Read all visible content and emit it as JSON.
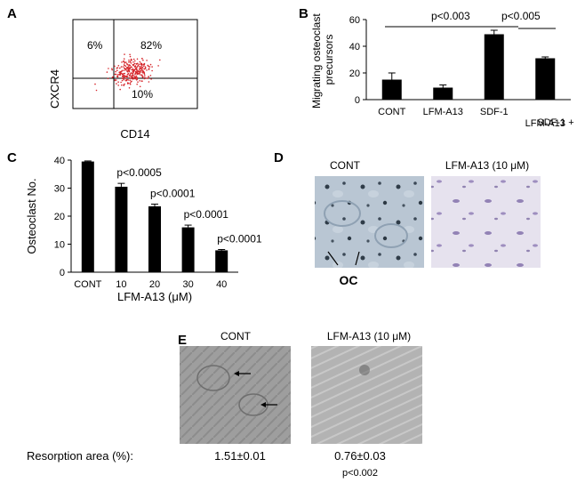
{
  "panels": {
    "A": {
      "letter": "A",
      "ylabel": "CXCR4",
      "xlabel": "CD14",
      "quadrant_ul": "6%",
      "quadrant_ur": "82%",
      "quadrant_lr": "10%"
    },
    "B": {
      "letter": "B",
      "p_value_1": "p<0.003",
      "p_value_2": "p<0.005",
      "cat_labels_multiline": [
        "",
        "",
        "",
        "SDF-1 +"
      ]
    },
    "C": {
      "letter": "C",
      "p_values": [
        "p<0.0005",
        "p<0.0001",
        "p<0.0001",
        "p<0.0001"
      ]
    },
    "D": {
      "letter": "D",
      "title_left": "CONT",
      "title_right": "LFM-A13 (10 μM)",
      "oc_label": "OC"
    },
    "E": {
      "letter": "E",
      "title_left": "CONT",
      "title_right": "LFM-A13 (10 μM)",
      "resorption_label": "Resorption area (%):",
      "value_cont": "1.51±0.01",
      "value_lfm": "0.76±0.03",
      "p_value": "p<0.002"
    }
  },
  "chart_data": [
    {
      "id": "B",
      "type": "bar",
      "categories": [
        "CONT",
        "LFM-A13",
        "SDF-1",
        "LFM-A13"
      ],
      "values": [
        15,
        9,
        49,
        31
      ],
      "errors": [
        5,
        2,
        3,
        1
      ],
      "ylabel": "Migrating osteoclast precursors",
      "ylabel_lines": [
        "Migrating osteoclast",
        "precursors"
      ],
      "ylim": [
        0,
        60
      ],
      "yticks": [
        0,
        20,
        40,
        60
      ],
      "color": "#000000"
    },
    {
      "id": "C",
      "type": "bar",
      "categories": [
        "CONT",
        "10",
        "20",
        "30",
        "40"
      ],
      "values": [
        39.5,
        30.5,
        23.5,
        16,
        7.8
      ],
      "errors": [
        0.2,
        1.2,
        0.8,
        0.8,
        0.3
      ],
      "xlabel": "LFM-A13 (μM)",
      "ylabel": "Osteoclast No.",
      "ylim": [
        0,
        40
      ],
      "yticks": [
        0,
        10,
        20,
        30,
        40
      ],
      "color": "#000000"
    }
  ]
}
